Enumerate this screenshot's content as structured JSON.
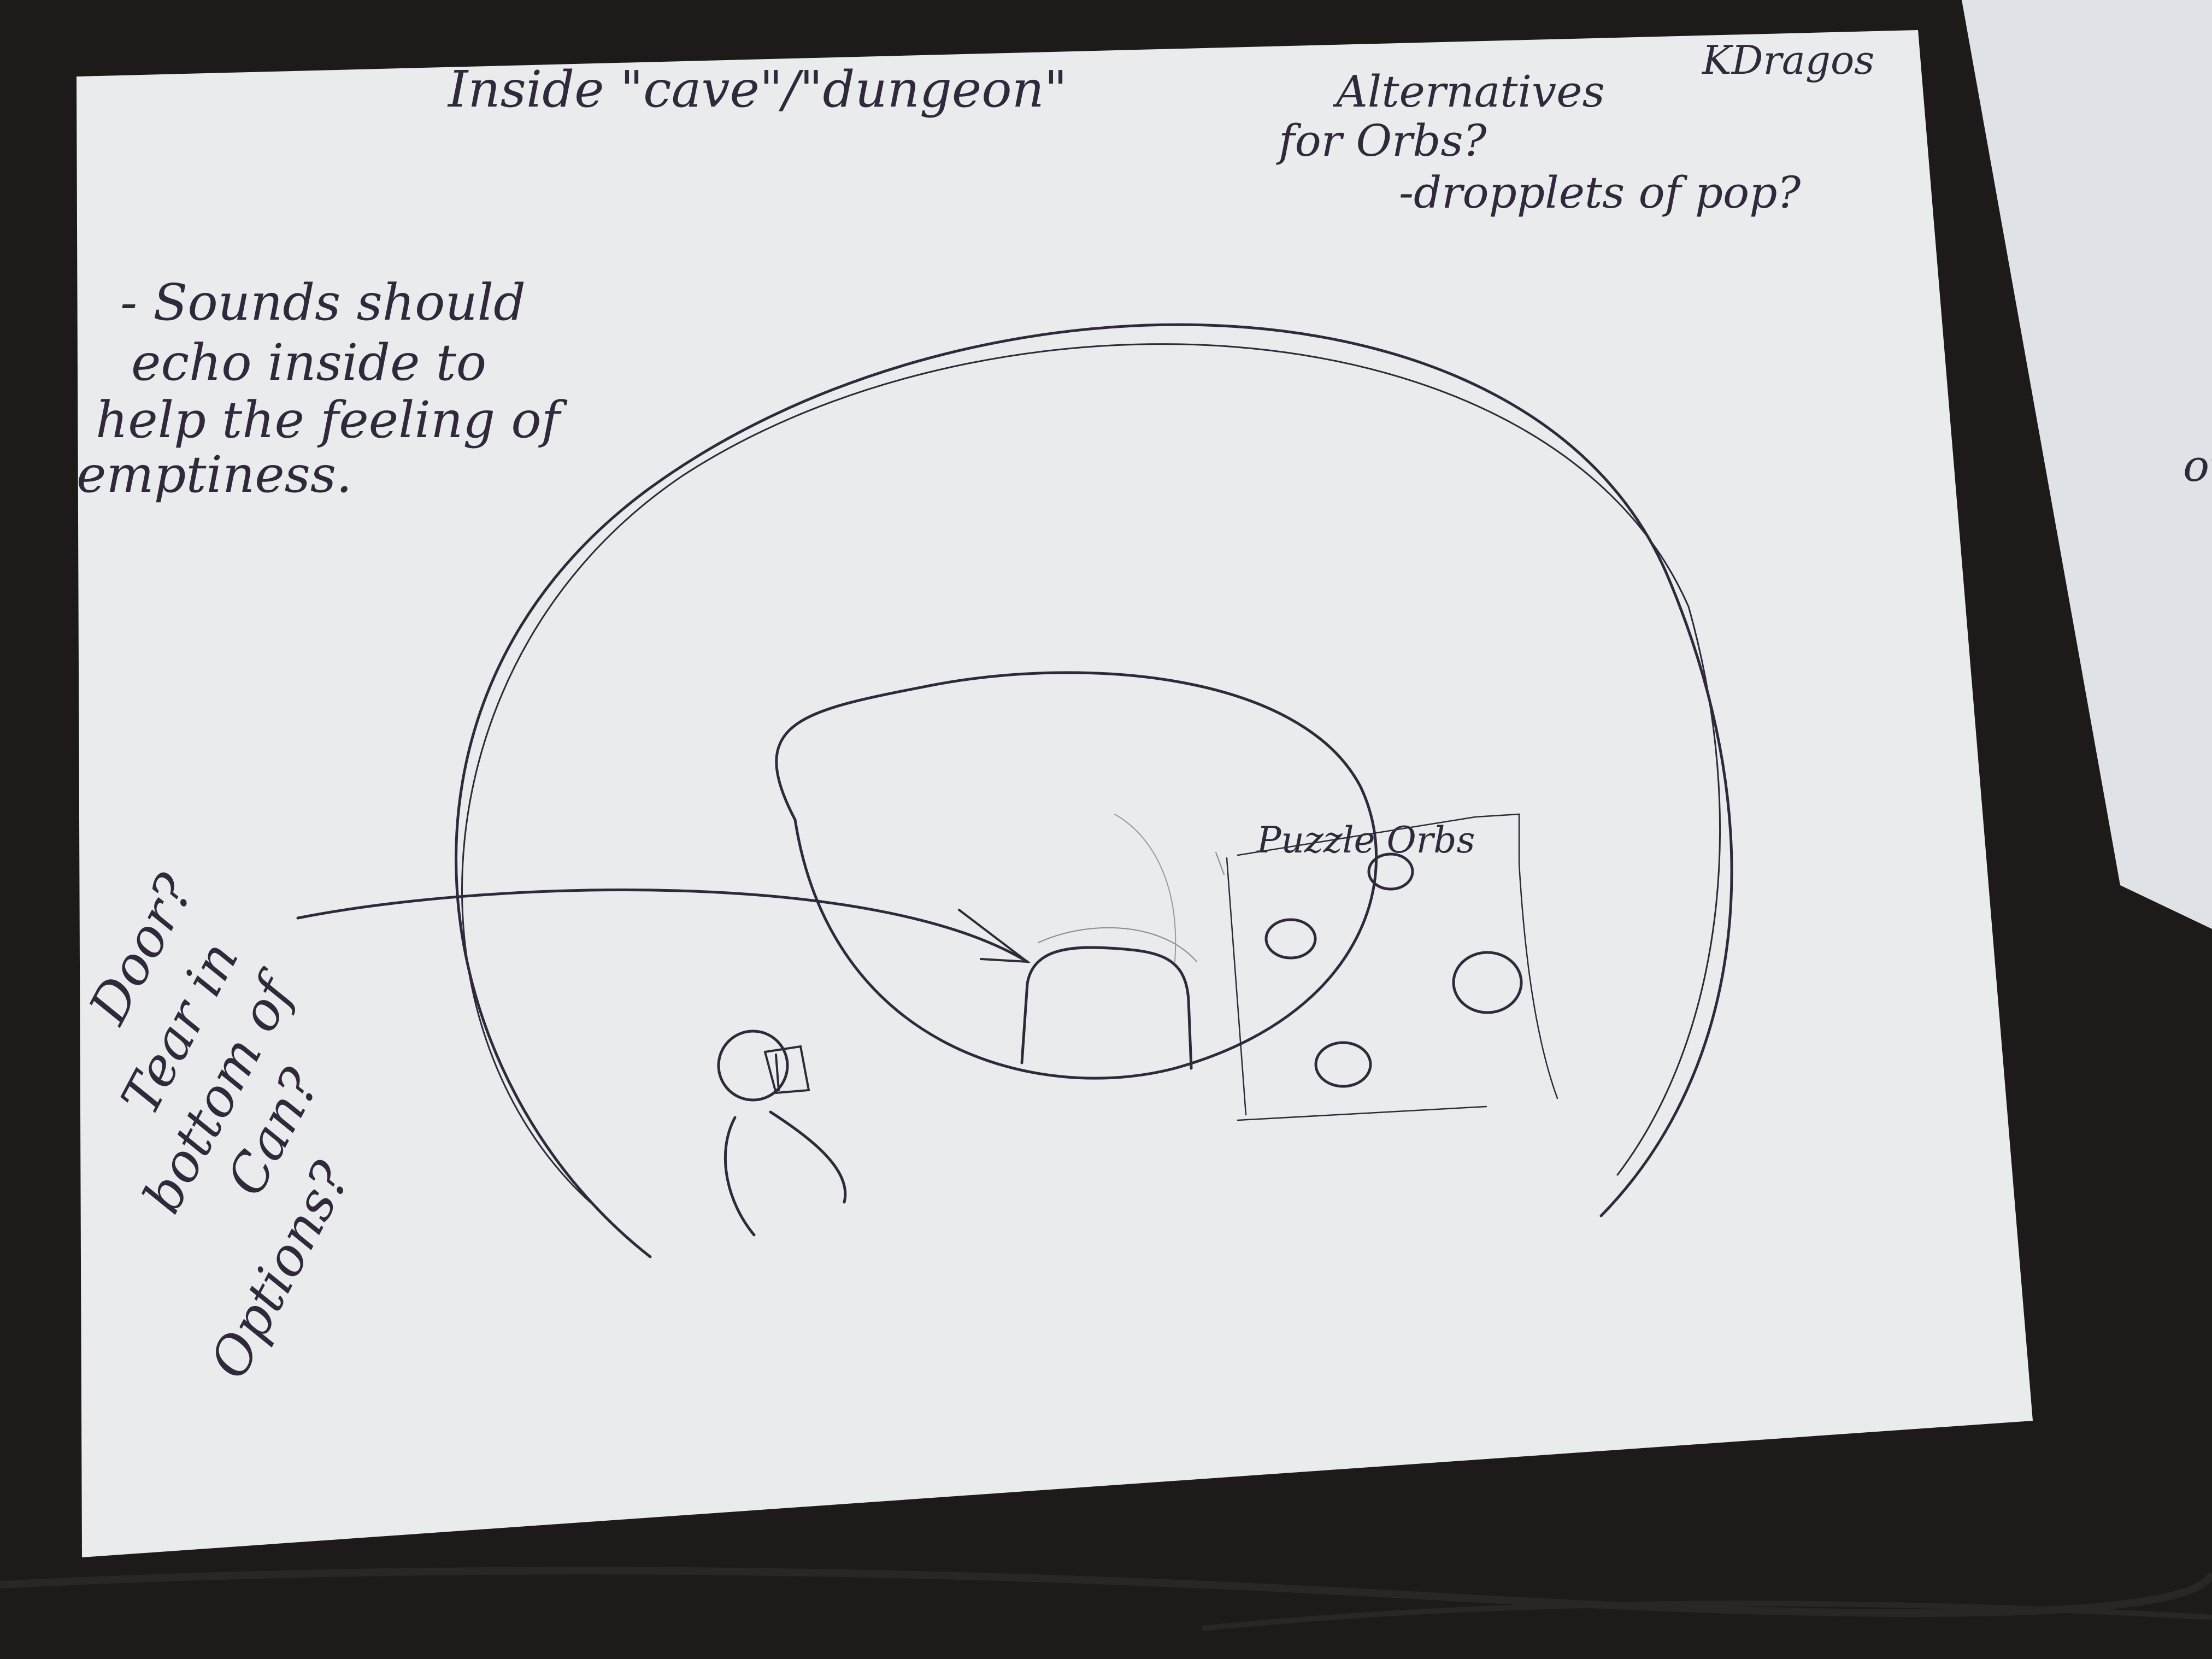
{
  "colors": {
    "desk": "#1d1a19",
    "paper": "#eaebed",
    "second_paper": "#dfe2e6",
    "ink": "#2e2a3c"
  },
  "sketch": {
    "title": "Inside \"cave\"/\"dungeon\"",
    "signature": "KDragos",
    "alt_note_line1": "Alternatives",
    "alt_note_line2": "for Orbs?",
    "alt_note_line3": "-dropplets of pop?",
    "sound_note_line1": "- Sounds should",
    "sound_note_line2": "echo inside to",
    "sound_note_line3": "help the feeling of",
    "sound_note_line4": "emptiness.",
    "door_note_line1": "Door?",
    "door_note_line2": "Tear in",
    "door_note_line3": "bottom of",
    "door_note_line4": "Can?",
    "door_note_line5": "Options?",
    "orbs_label": "Puzzle Orbs",
    "second_page_fragment": "ot"
  }
}
